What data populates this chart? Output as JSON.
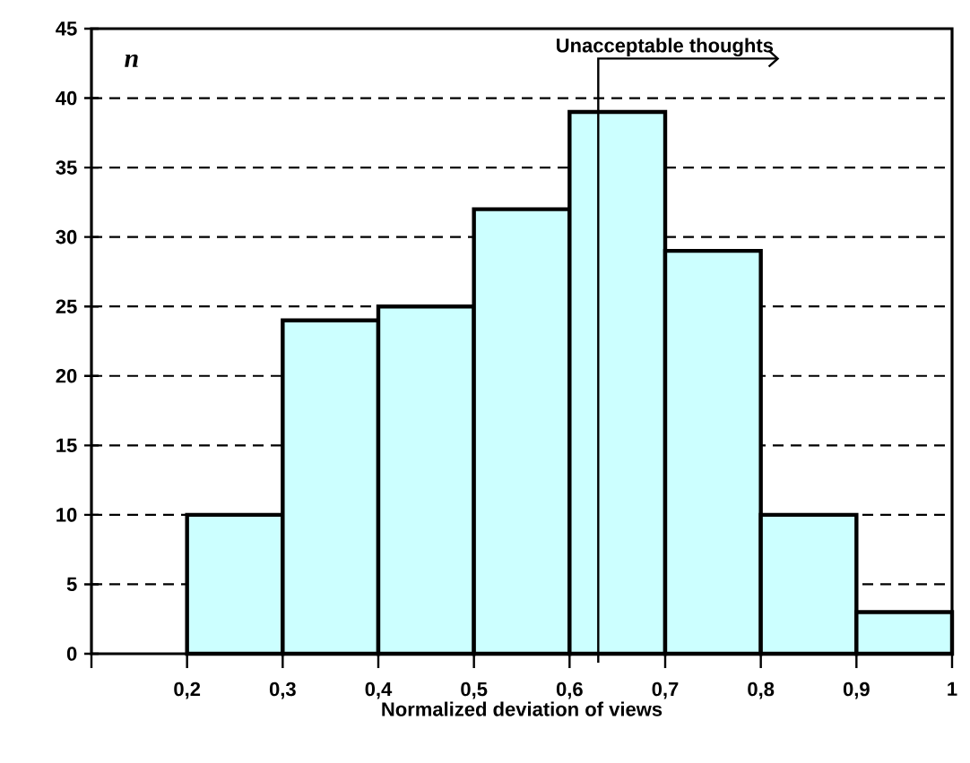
{
  "chart_data": {
    "type": "histogram",
    "xlabel": "Normalized deviation of views",
    "ylabel": "n",
    "bins": [
      0.2,
      0.3,
      0.4,
      0.5,
      0.6,
      0.7,
      0.8,
      0.9,
      1.0
    ],
    "values": [
      10,
      24,
      25,
      32,
      39,
      29,
      10,
      3
    ],
    "color": "#ccffff",
    "xlim": [
      0.1,
      1.0
    ],
    "xticks": [
      {
        "value": 0.1,
        "label": null
      },
      {
        "value": 0.2,
        "label": "0,2"
      },
      {
        "value": 0.3,
        "label": "0,3"
      },
      {
        "value": 0.4,
        "label": "0,4"
      },
      {
        "value": 0.5,
        "label": "0,5"
      },
      {
        "value": 0.6,
        "label": "0,6"
      },
      {
        "value": 0.7,
        "label": "0,7"
      },
      {
        "value": 0.8,
        "label": "0,8"
      },
      {
        "value": 0.9,
        "label": "0,9"
      },
      {
        "value": 1.0,
        "label": "1"
      }
    ],
    "ylim": [
      0,
      45
    ],
    "yticks": [
      0,
      5,
      10,
      15,
      20,
      25,
      30,
      35,
      40,
      45
    ],
    "grid": "y",
    "ref_lines": [
      {
        "axis": "x",
        "value": 0.63,
        "label": "Unacceptable thoughts"
      }
    ]
  }
}
